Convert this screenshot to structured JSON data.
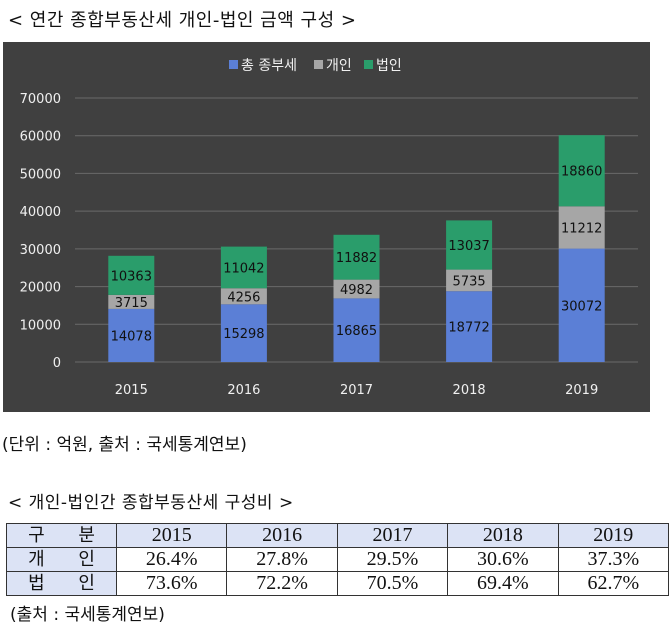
{
  "chart_title": "< 연간 종합부동산세 개인-법인 금액 구성 >",
  "chart_note": "(단위 : 억원, 출처 : 국세통계연보)",
  "table_title": "< 개인-법인간 종합부동산세 구성비 >",
  "table": {
    "header": [
      "구 분",
      "2015",
      "2016",
      "2017",
      "2018",
      "2019"
    ],
    "rows": [
      [
        "개 인",
        "26.4%",
        "27.8%",
        "29.5%",
        "30.6%",
        "37.3%"
      ],
      [
        "법 인",
        "73.6%",
        "72.2%",
        "70.5%",
        "69.4%",
        "62.7%"
      ]
    ]
  },
  "table_note": "(출처 : 국세통계연보)",
  "chart_data": {
    "type": "bar",
    "stacked": true,
    "categories": [
      "2015",
      "2016",
      "2017",
      "2018",
      "2019"
    ],
    "series": [
      {
        "name": "총 종부세",
        "color": "#5b7fd6",
        "values": [
          14078,
          15298,
          16865,
          18772,
          30072
        ]
      },
      {
        "name": "개인",
        "color": "#a6a6a6",
        "values": [
          3715,
          4256,
          4982,
          5735,
          11212
        ]
      },
      {
        "name": "법인",
        "color": "#2a9d6b",
        "values": [
          10363,
          11042,
          11882,
          13037,
          18860
        ]
      }
    ],
    "yticks": [
      "0",
      "10000",
      "20000",
      "30000",
      "40000",
      "50000",
      "60000",
      "70000"
    ],
    "ylim": [
      0,
      70000
    ],
    "legend": "top",
    "grid": true
  }
}
